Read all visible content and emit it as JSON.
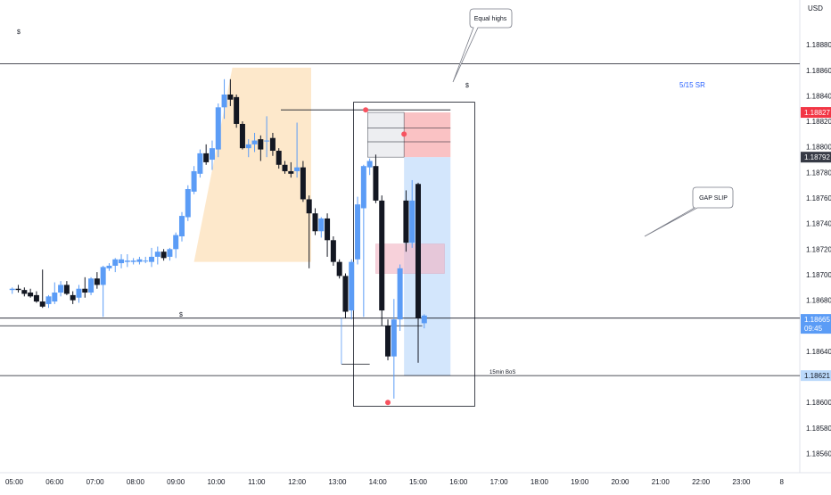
{
  "chart_data": {
    "type": "candlestick",
    "title": "",
    "currency": "USD",
    "ylim": [
      1.18545,
      1.18915
    ],
    "y_ticks": [
      1.1856,
      1.1858,
      1.186,
      1.1862,
      1.1864,
      1.1866,
      1.1868,
      1.187,
      1.1872,
      1.1874,
      1.1876,
      1.1878,
      1.188,
      1.1882,
      1.1884,
      1.1886,
      1.1888
    ],
    "x_ticks": [
      "05:00",
      "06:00",
      "07:00",
      "08:00",
      "09:00",
      "10:00",
      "11:00",
      "12:00",
      "13:00",
      "14:00",
      "15:00",
      "16:00",
      "17:00",
      "18:00",
      "19:00",
      "20:00",
      "21:00",
      "22:00",
      "23:00",
      "8"
    ],
    "price_badges": [
      {
        "value": "1.18827",
        "color": "#f23645"
      },
      {
        "value": "1.18792",
        "color": "#363a45"
      },
      {
        "value": "1.18665",
        "sub": "09:45",
        "color": "#5b9cf6"
      },
      {
        "value": "1.18621",
        "color": "#bbd9fb"
      }
    ],
    "candles": [
      {
        "t": 4.95,
        "o": 1.18688,
        "h": 1.1869,
        "l": 1.18685,
        "c": 1.18689
      },
      {
        "t": 5.1,
        "o": 1.18689,
        "h": 1.18692,
        "l": 1.18686,
        "c": 1.18688
      },
      {
        "t": 5.25,
        "o": 1.18688,
        "h": 1.1869,
        "l": 1.18683,
        "c": 1.18685
      },
      {
        "t": 5.4,
        "o": 1.18686,
        "h": 1.18689,
        "l": 1.18682,
        "c": 1.18683
      },
      {
        "t": 5.55,
        "o": 1.18684,
        "h": 1.18687,
        "l": 1.18678,
        "c": 1.18679
      },
      {
        "t": 5.7,
        "o": 1.18679,
        "h": 1.18704,
        "l": 1.18674,
        "c": 1.18675
      },
      {
        "t": 5.85,
        "o": 1.18677,
        "h": 1.18684,
        "l": 1.18674,
        "c": 1.18683
      },
      {
        "t": 6.0,
        "o": 1.18679,
        "h": 1.18694,
        "l": 1.18677,
        "c": 1.18686
      },
      {
        "t": 6.15,
        "o": 1.18686,
        "h": 1.18695,
        "l": 1.18683,
        "c": 1.18692
      },
      {
        "t": 6.3,
        "o": 1.18692,
        "h": 1.18695,
        "l": 1.18684,
        "c": 1.18685
      },
      {
        "t": 6.45,
        "o": 1.18684,
        "h": 1.18687,
        "l": 1.18677,
        "c": 1.1868
      },
      {
        "t": 6.6,
        "o": 1.18682,
        "h": 1.18692,
        "l": 1.18678,
        "c": 1.18689
      },
      {
        "t": 6.75,
        "o": 1.18689,
        "h": 1.18698,
        "l": 1.18682,
        "c": 1.18686
      },
      {
        "t": 6.9,
        "o": 1.18686,
        "h": 1.18698,
        "l": 1.18684,
        "c": 1.18697
      },
      {
        "t": 7.05,
        "o": 1.18697,
        "h": 1.18702,
        "l": 1.18689,
        "c": 1.18692
      },
      {
        "t": 7.2,
        "o": 1.18692,
        "h": 1.18707,
        "l": 1.18667,
        "c": 1.18706
      },
      {
        "t": 7.35,
        "o": 1.18705,
        "h": 1.18709,
        "l": 1.18703,
        "c": 1.18707
      },
      {
        "t": 7.5,
        "o": 1.18707,
        "h": 1.18713,
        "l": 1.18702,
        "c": 1.18712
      },
      {
        "t": 7.65,
        "o": 1.18709,
        "h": 1.18716,
        "l": 1.18705,
        "c": 1.18712
      },
      {
        "t": 7.8,
        "o": 1.1871,
        "h": 1.18716,
        "l": 1.18706,
        "c": 1.18711
      },
      {
        "t": 7.95,
        "o": 1.1871,
        "h": 1.18713,
        "l": 1.18708,
        "c": 1.18711
      },
      {
        "t": 8.1,
        "o": 1.1871,
        "h": 1.18714,
        "l": 1.18708,
        "c": 1.18712
      },
      {
        "t": 8.25,
        "o": 1.18711,
        "h": 1.18714,
        "l": 1.18709,
        "c": 1.18711
      },
      {
        "t": 8.4,
        "o": 1.1871,
        "h": 1.18721,
        "l": 1.18706,
        "c": 1.18714
      },
      {
        "t": 8.55,
        "o": 1.18714,
        "h": 1.18722,
        "l": 1.18708,
        "c": 1.18718
      },
      {
        "t": 8.7,
        "o": 1.18718,
        "h": 1.1872,
        "l": 1.18711,
        "c": 1.18713
      },
      {
        "t": 8.85,
        "o": 1.18714,
        "h": 1.18721,
        "l": 1.18711,
        "c": 1.1872
      },
      {
        "t": 9.0,
        "o": 1.1872,
        "h": 1.18733,
        "l": 1.18713,
        "c": 1.18731
      },
      {
        "t": 9.15,
        "o": 1.1873,
        "h": 1.18749,
        "l": 1.18726,
        "c": 1.18746
      },
      {
        "t": 9.3,
        "o": 1.18745,
        "h": 1.1877,
        "l": 1.18742,
        "c": 1.18767
      },
      {
        "t": 9.45,
        "o": 1.18765,
        "h": 1.18785,
        "l": 1.18763,
        "c": 1.18781
      },
      {
        "t": 9.6,
        "o": 1.18779,
        "h": 1.18798,
        "l": 1.18776,
        "c": 1.18795
      },
      {
        "t": 9.75,
        "o": 1.18795,
        "h": 1.18802,
        "l": 1.18786,
        "c": 1.18788
      },
      {
        "t": 9.9,
        "o": 1.1879,
        "h": 1.18805,
        "l": 1.18782,
        "c": 1.18799
      },
      {
        "t": 10.05,
        "o": 1.18798,
        "h": 1.18834,
        "l": 1.18792,
        "c": 1.18831
      },
      {
        "t": 10.2,
        "o": 1.18831,
        "h": 1.18853,
        "l": 1.18822,
        "c": 1.18841
      },
      {
        "t": 10.35,
        "o": 1.18841,
        "h": 1.18853,
        "l": 1.18832,
        "c": 1.18837
      },
      {
        "t": 10.5,
        "o": 1.18839,
        "h": 1.18841,
        "l": 1.18815,
        "c": 1.18818
      },
      {
        "t": 10.65,
        "o": 1.18818,
        "h": 1.1882,
        "l": 1.18798,
        "c": 1.18799
      },
      {
        "t": 10.8,
        "o": 1.18799,
        "h": 1.18806,
        "l": 1.18792,
        "c": 1.18802
      },
      {
        "t": 10.95,
        "o": 1.18802,
        "h": 1.18811,
        "l": 1.18796,
        "c": 1.18805
      },
      {
        "t": 11.1,
        "o": 1.18806,
        "h": 1.18809,
        "l": 1.18789,
        "c": 1.18798
      },
      {
        "t": 11.25,
        "o": 1.18805,
        "h": 1.18824,
        "l": 1.18792,
        "c": 1.18805
      },
      {
        "t": 11.4,
        "o": 1.18807,
        "h": 1.18811,
        "l": 1.18793,
        "c": 1.18797
      },
      {
        "t": 11.55,
        "o": 1.18797,
        "h": 1.18799,
        "l": 1.18783,
        "c": 1.18786
      },
      {
        "t": 11.7,
        "o": 1.18786,
        "h": 1.18789,
        "l": 1.18779,
        "c": 1.18781
      },
      {
        "t": 11.85,
        "o": 1.18781,
        "h": 1.18788,
        "l": 1.18776,
        "c": 1.18779
      },
      {
        "t": 12.0,
        "o": 1.18781,
        "h": 1.18819,
        "l": 1.18776,
        "c": 1.18784
      },
      {
        "t": 12.15,
        "o": 1.18784,
        "h": 1.18789,
        "l": 1.18757,
        "c": 1.18759
      },
      {
        "t": 12.3,
        "o": 1.18759,
        "h": 1.18762,
        "l": 1.18705,
        "c": 1.18748
      },
      {
        "t": 12.45,
        "o": 1.18748,
        "h": 1.18752,
        "l": 1.18731,
        "c": 1.18734
      },
      {
        "t": 12.6,
        "o": 1.18734,
        "h": 1.18745,
        "l": 1.18729,
        "c": 1.18744
      },
      {
        "t": 12.75,
        "o": 1.18744,
        "h": 1.18748,
        "l": 1.18714,
        "c": 1.18727
      },
      {
        "t": 12.9,
        "o": 1.18727,
        "h": 1.1873,
        "l": 1.18707,
        "c": 1.1871
      },
      {
        "t": 13.05,
        "o": 1.1871,
        "h": 1.18712,
        "l": 1.18697,
        "c": 1.18699
      },
      {
        "t": 13.2,
        "o": 1.18699,
        "h": 1.18701,
        "l": 1.18666,
        "c": 1.18671
      },
      {
        "t": 13.35,
        "o": 1.18672,
        "h": 1.18712,
        "l": 1.18665,
        "c": 1.1871
      },
      {
        "t": 13.5,
        "o": 1.18712,
        "h": 1.18761,
        "l": 1.18708,
        "c": 1.18755
      },
      {
        "t": 13.65,
        "o": 1.18752,
        "h": 1.18786,
        "l": 1.18667,
        "c": 1.18785
      },
      {
        "t": 13.8,
        "o": 1.18784,
        "h": 1.18791,
        "l": 1.18778,
        "c": 1.18789
      },
      {
        "t": 13.95,
        "o": 1.18785,
        "h": 1.18794,
        "l": 1.18756,
        "c": 1.18758
      },
      {
        "t": 14.1,
        "o": 1.18758,
        "h": 1.18762,
        "l": 1.1866,
        "c": 1.18672
      },
      {
        "t": 14.25,
        "o": 1.1866,
        "h": 1.18665,
        "l": 1.18633,
        "c": 1.18636
      },
      {
        "t": 14.4,
        "o": 1.18636,
        "h": 1.18681,
        "l": 1.18603,
        "c": 1.18665
      },
      {
        "t": 14.55,
        "o": 1.18665,
        "h": 1.18708,
        "l": 1.18656,
        "c": 1.18705
      },
      {
        "t": 14.7,
        "o": 1.18758,
        "h": 1.18766,
        "l": 1.18718,
        "c": 1.18725
      },
      {
        "t": 14.85,
        "o": 1.18725,
        "h": 1.18774,
        "l": 1.18721,
        "c": 1.18758
      },
      {
        "t": 15.0,
        "o": 1.18771,
        "h": 1.18772,
        "l": 1.18631,
        "c": 1.18666
      },
      {
        "t": 15.15,
        "o": 1.18662,
        "h": 1.18669,
        "l": 1.18658,
        "c": 1.18668
      }
    ]
  },
  "annotations": {
    "equal_highs": "Equal highs",
    "sr_label": "5/15 SR",
    "gap_slip": "GAP SLIP",
    "bos_label": "15min BoS",
    "dollar_marker": "$"
  }
}
